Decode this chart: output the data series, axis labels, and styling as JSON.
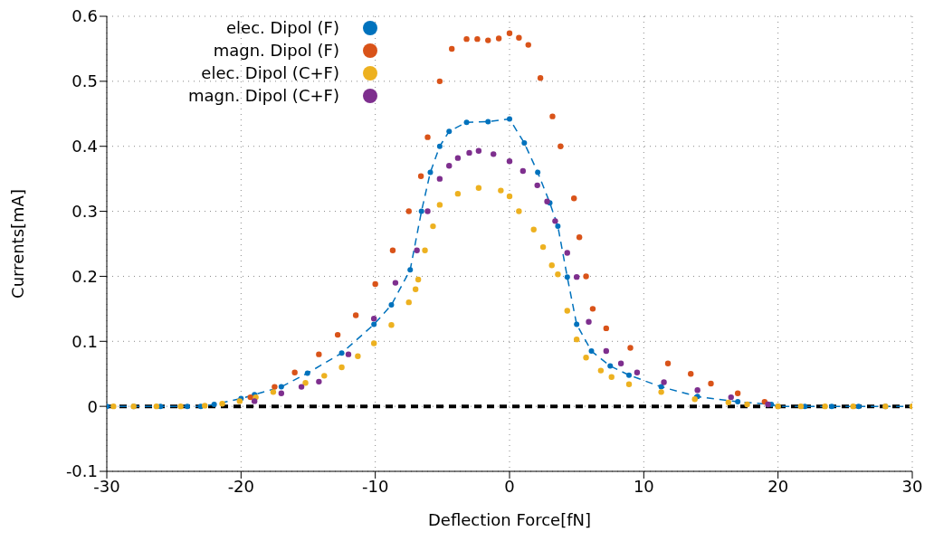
{
  "chart_data": {
    "type": "line",
    "xlabel": "Deflection Force[fN]",
    "ylabel": "Currents[mA]",
    "xlim": [
      -30,
      30
    ],
    "ylim": [
      -0.1,
      0.6
    ],
    "xticks": [
      -30,
      -20,
      -10,
      0,
      10,
      20,
      30
    ],
    "yticks": [
      -0.1,
      0,
      0.1,
      0.2,
      0.3,
      0.4,
      0.5,
      0.6
    ],
    "grid": true,
    "legend": "top left",
    "marker": "circle",
    "series": [
      {
        "name": "elec. Dipol (F)",
        "color": "#0072bd",
        "line_style": "dashed",
        "x": [
          -30,
          -28,
          -26,
          -24,
          -23,
          -22,
          -20,
          -19,
          -17,
          -15.05,
          -12.5,
          -10.1,
          -8.8,
          -7.4,
          -6.56,
          -5.9,
          -5.2,
          -4.5,
          -3.2,
          -1.6,
          0,
          1.1,
          2.1,
          3,
          3.6,
          4.3,
          5,
          6.1,
          7.5,
          8.9,
          11.3,
          14,
          17,
          19.5,
          20,
          22,
          24,
          26,
          28,
          30
        ],
        "values": [
          0,
          0,
          0,
          0,
          0,
          0.003,
          0.012,
          0.018,
          0.03,
          0.051,
          0.082,
          0.126,
          0.156,
          0.21,
          0.3,
          0.36,
          0.4,
          0.423,
          0.437,
          0.438,
          0.442,
          0.405,
          0.36,
          0.313,
          0.277,
          0.199,
          0.126,
          0.085,
          0.062,
          0.048,
          0.03,
          0.015,
          0.007,
          0.003,
          0,
          0,
          0,
          0,
          0,
          0
        ]
      },
      {
        "name": "magn. Dipol (F)",
        "color": "#d95319",
        "type": "scatter",
        "x": [
          -19.3,
          -17.5,
          -16,
          -14.2,
          -12.8,
          -11.45,
          -10,
          -8.7,
          -7.5,
          -6.6,
          -6.1,
          -5.2,
          -4.3,
          -3.2,
          -2.4,
          -1.6,
          -0.8,
          0,
          0.7,
          1.4,
          2.3,
          3.2,
          3.8,
          4.8,
          5.2,
          5.7,
          6.2,
          7.2,
          9,
          11.8,
          13.5,
          15,
          17,
          19
        ],
        "values": [
          0.014,
          0.03,
          0.052,
          0.08,
          0.11,
          0.14,
          0.188,
          0.24,
          0.3,
          0.354,
          0.414,
          0.5,
          0.55,
          0.565,
          0.565,
          0.563,
          0.566,
          0.574,
          0.567,
          0.556,
          0.505,
          0.446,
          0.4,
          0.32,
          0.26,
          0.2,
          0.15,
          0.12,
          0.09,
          0.066,
          0.05,
          0.035,
          0.02,
          0.007
        ]
      },
      {
        "name": "elec. Dipol (C+F)",
        "color": "#edb120",
        "type": "scatter",
        "x": [
          -29.5,
          -28,
          -26.3,
          -24.5,
          -22.7,
          -21.4,
          -20.1,
          -18.9,
          -17.6,
          -15.2,
          -13.8,
          -12.5,
          -11.3,
          -10.1,
          -8.8,
          -7.5,
          -7,
          -6.8,
          -6.3,
          -5.7,
          -5.2,
          -3.85,
          -2.3,
          -0.65,
          0,
          0.7,
          1.8,
          2.5,
          3.15,
          3.6,
          4.3,
          5,
          5.7,
          6.8,
          7.6,
          8.9,
          11.3,
          13.8,
          16.3,
          17.7,
          20,
          21.7,
          23.5,
          25.6,
          28,
          30
        ],
        "values": [
          0,
          0,
          0,
          0,
          0.001,
          0.004,
          0.008,
          0.014,
          0.022,
          0.036,
          0.047,
          0.06,
          0.077,
          0.097,
          0.125,
          0.16,
          0.18,
          0.195,
          0.24,
          0.277,
          0.31,
          0.327,
          0.336,
          0.332,
          0.323,
          0.3,
          0.272,
          0.245,
          0.217,
          0.203,
          0.147,
          0.103,
          0.075,
          0.055,
          0.045,
          0.034,
          0.022,
          0.011,
          0.006,
          0.003,
          0,
          0,
          0,
          0,
          0,
          0
        ]
      },
      {
        "name": "magn. Dipol (C+F)",
        "color": "#7e2f8e",
        "type": "scatter",
        "x": [
          -19,
          -17,
          -15.5,
          -14.2,
          -12,
          -10.1,
          -8.5,
          -6.9,
          -6.1,
          -5.2,
          -4.5,
          -3.85,
          -3,
          -2.3,
          -1.2,
          0,
          1,
          2.07,
          2.8,
          3.4,
          4.3,
          5,
          5.9,
          7.2,
          8.3,
          9.5,
          11.5,
          14,
          16.5,
          19.25
        ],
        "values": [
          0.008,
          0.02,
          0.03,
          0.038,
          0.08,
          0.135,
          0.19,
          0.24,
          0.3,
          0.35,
          0.37,
          0.382,
          0.39,
          0.393,
          0.388,
          0.377,
          0.362,
          0.34,
          0.315,
          0.285,
          0.236,
          0.199,
          0.13,
          0.085,
          0.066,
          0.052,
          0.037,
          0.025,
          0.014,
          0.003
        ]
      }
    ],
    "ref_lines": [
      {
        "axis": "y",
        "value": 0,
        "color": "#000000",
        "line_style": "dashed"
      }
    ]
  }
}
